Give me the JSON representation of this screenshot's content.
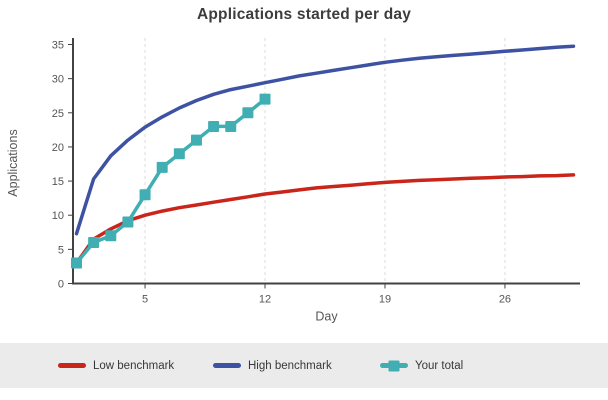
{
  "chart_data": {
    "type": "line",
    "title": "Applications started per day",
    "xlabel": "Day",
    "ylabel": "Applications",
    "xlim": [
      1,
      30
    ],
    "ylim": [
      0,
      35
    ],
    "x_ticks": [
      5,
      12,
      19,
      26
    ],
    "y_ticks": [
      0,
      5,
      10,
      15,
      20,
      25,
      30,
      35
    ],
    "grid": "vertical-dashed",
    "legend_position": "bottom",
    "series": [
      {
        "name": "Low benchmark",
        "color": "#c9251b",
        "marker": "none",
        "x": [
          1,
          2,
          3,
          4,
          5,
          6,
          7,
          8,
          9,
          10,
          11,
          12,
          13,
          14,
          15,
          16,
          17,
          18,
          19,
          20,
          21,
          22,
          23,
          24,
          25,
          26,
          27,
          28,
          29,
          30
        ],
        "values": [
          3,
          6.5,
          8,
          9.2,
          10,
          10.6,
          11.1,
          11.5,
          11.9,
          12.3,
          12.7,
          13.1,
          13.4,
          13.7,
          14,
          14.2,
          14.4,
          14.6,
          14.8,
          14.95,
          15.1,
          15.2,
          15.3,
          15.4,
          15.5,
          15.6,
          15.65,
          15.75,
          15.8,
          15.9
        ]
      },
      {
        "name": "High benchmark",
        "color": "#3e52a3",
        "marker": "none",
        "x": [
          1,
          2,
          3,
          4,
          5,
          6,
          7,
          8,
          9,
          10,
          11,
          12,
          13,
          14,
          15,
          16,
          17,
          18,
          19,
          20,
          21,
          22,
          23,
          24,
          25,
          26,
          27,
          28,
          29,
          30
        ],
        "values": [
          7.3,
          15.3,
          18.7,
          21,
          22.9,
          24.4,
          25.7,
          26.8,
          27.7,
          28.4,
          28.9,
          29.4,
          29.9,
          30.4,
          30.8,
          31.2,
          31.6,
          32,
          32.4,
          32.7,
          33,
          33.2,
          33.4,
          33.6,
          33.8,
          34,
          34.2,
          34.4,
          34.6,
          34.75
        ]
      },
      {
        "name": "Your total",
        "color": "#40aeb3",
        "marker": "square",
        "x": [
          1,
          2,
          3,
          4,
          5,
          6,
          7,
          8,
          9,
          10,
          11,
          12
        ],
        "values": [
          3,
          6,
          7,
          9,
          13,
          17,
          19,
          21,
          23,
          23,
          25,
          27
        ]
      }
    ]
  },
  "style_colors": {
    "axis": "#424242",
    "tick_label": "#555555",
    "axis_label": "#555555",
    "gridline": "#dcdcdc",
    "legend_background": "#ebebeb",
    "title": "#3d3d3d"
  }
}
